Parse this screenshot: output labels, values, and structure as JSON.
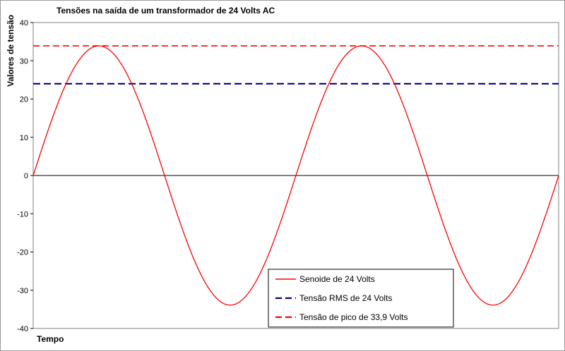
{
  "chart_data": {
    "type": "line",
    "title": "Tensões na saída de um transformador de 24 Volts AC",
    "xlabel": "Tempo",
    "ylabel": "Valores de tensão",
    "ylim": [
      -40,
      40
    ],
    "yticks": [
      40,
      30,
      20,
      10,
      0,
      -10,
      -20,
      -30,
      -40
    ],
    "xlim": [
      0,
      2
    ],
    "x_unit": "cycles",
    "grid": false,
    "legend_position": "bottom-right",
    "series": [
      {
        "name": "Senoide de 24 Volts",
        "kind": "sine",
        "amplitude": 33.9,
        "cycles": 2,
        "color": "#ff0000",
        "style": "solid"
      },
      {
        "name": "Tensão RMS de 24 Volts",
        "kind": "constant",
        "value": 24,
        "color": "#000080",
        "style": "dashed"
      },
      {
        "name": "Tensão de pico de 33,9 Volts",
        "kind": "constant",
        "value": 33.9,
        "color": "#ff0000",
        "style": "dashed"
      }
    ]
  }
}
